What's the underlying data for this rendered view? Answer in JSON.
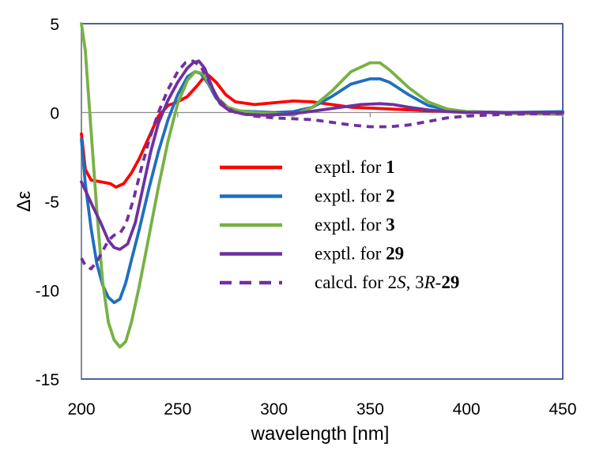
{
  "chart_data": {
    "type": "line",
    "title": "",
    "xlabel": "wavelength [nm]",
    "ylabel": "Δε",
    "xlim": [
      200,
      450
    ],
    "ylim": [
      -15,
      5
    ],
    "xticks": [
      200,
      250,
      300,
      350,
      400,
      450
    ],
    "yticks": [
      5,
      0,
      -5,
      -10,
      -15
    ],
    "grid": false,
    "legend_position": "center-right",
    "series": [
      {
        "name": "exptl. for 1",
        "legend_prefix": "exptl. for ",
        "legend_bold": "1",
        "color": "#ff0000",
        "dashed": false,
        "points": [
          [
            200,
            -1.2
          ],
          [
            202,
            -3.2
          ],
          [
            205,
            -3.8
          ],
          [
            210,
            -3.9
          ],
          [
            215,
            -4.0
          ],
          [
            218,
            -4.2
          ],
          [
            222,
            -4.0
          ],
          [
            226,
            -3.4
          ],
          [
            230,
            -2.6
          ],
          [
            235,
            -1.4
          ],
          [
            240,
            -0.2
          ],
          [
            245,
            0.4
          ],
          [
            250,
            0.6
          ],
          [
            255,
            0.9
          ],
          [
            260,
            1.5
          ],
          [
            263,
            1.9
          ],
          [
            266,
            2.1
          ],
          [
            270,
            1.7
          ],
          [
            275,
            1.0
          ],
          [
            280,
            0.6
          ],
          [
            290,
            0.45
          ],
          [
            300,
            0.55
          ],
          [
            310,
            0.65
          ],
          [
            320,
            0.6
          ],
          [
            330,
            0.45
          ],
          [
            340,
            0.3
          ],
          [
            350,
            0.25
          ],
          [
            360,
            0.2
          ],
          [
            370,
            0.15
          ],
          [
            380,
            0.1
          ],
          [
            400,
            0.05
          ],
          [
            420,
            0.0
          ],
          [
            450,
            0.0
          ]
        ]
      },
      {
        "name": "exptl. for 2",
        "legend_prefix": "exptl. for ",
        "legend_bold": "2",
        "color": "#1f6fbf",
        "dashed": false,
        "points": [
          [
            200,
            -1.5
          ],
          [
            202,
            -4.0
          ],
          [
            205,
            -6.5
          ],
          [
            208,
            -8.5
          ],
          [
            211,
            -9.7
          ],
          [
            214,
            -10.4
          ],
          [
            217,
            -10.7
          ],
          [
            220,
            -10.5
          ],
          [
            223,
            -9.6
          ],
          [
            226,
            -8.3
          ],
          [
            230,
            -6.6
          ],
          [
            235,
            -4.3
          ],
          [
            240,
            -2.2
          ],
          [
            245,
            -0.4
          ],
          [
            250,
            1.0
          ],
          [
            255,
            2.0
          ],
          [
            259,
            2.3
          ],
          [
            262,
            2.2
          ],
          [
            266,
            1.6
          ],
          [
            270,
            0.8
          ],
          [
            275,
            0.3
          ],
          [
            280,
            0.1
          ],
          [
            290,
            0.05
          ],
          [
            300,
            0.0
          ],
          [
            310,
            0.05
          ],
          [
            320,
            0.3
          ],
          [
            330,
            0.9
          ],
          [
            340,
            1.6
          ],
          [
            350,
            1.9
          ],
          [
            355,
            1.9
          ],
          [
            360,
            1.7
          ],
          [
            370,
            1.0
          ],
          [
            380,
            0.4
          ],
          [
            390,
            0.15
          ],
          [
            400,
            0.05
          ],
          [
            420,
            0.0
          ],
          [
            450,
            0.05
          ]
        ]
      },
      {
        "name": "exptl. for 3",
        "legend_prefix": "exptl. for ",
        "legend_bold": "3",
        "color": "#77b144",
        "dashed": false,
        "points": [
          [
            200,
            5.0
          ],
          [
            202,
            3.5
          ],
          [
            205,
            -1.0
          ],
          [
            208,
            -5.5
          ],
          [
            211,
            -9.5
          ],
          [
            214,
            -11.8
          ],
          [
            217,
            -12.8
          ],
          [
            220,
            -13.2
          ],
          [
            223,
            -12.9
          ],
          [
            226,
            -11.8
          ],
          [
            230,
            -9.8
          ],
          [
            235,
            -7.0
          ],
          [
            240,
            -4.2
          ],
          [
            245,
            -1.6
          ],
          [
            250,
            0.5
          ],
          [
            255,
            1.8
          ],
          [
            259,
            2.3
          ],
          [
            263,
            2.2
          ],
          [
            267,
            1.5
          ],
          [
            271,
            0.8
          ],
          [
            276,
            0.3
          ],
          [
            282,
            0.1
          ],
          [
            290,
            0.0
          ],
          [
            300,
            -0.05
          ],
          [
            310,
            -0.15
          ],
          [
            320,
            0.3
          ],
          [
            330,
            1.2
          ],
          [
            340,
            2.3
          ],
          [
            350,
            2.8
          ],
          [
            355,
            2.8
          ],
          [
            360,
            2.4
          ],
          [
            370,
            1.4
          ],
          [
            380,
            0.6
          ],
          [
            390,
            0.2
          ],
          [
            400,
            0.05
          ],
          [
            420,
            -0.05
          ],
          [
            450,
            -0.1
          ]
        ]
      },
      {
        "name": "exptl. for 29",
        "legend_prefix": "exptl. for ",
        "legend_bold": "29",
        "color": "#7030a0",
        "dashed": false,
        "points": [
          [
            200,
            -3.9
          ],
          [
            203,
            -4.6
          ],
          [
            206,
            -5.3
          ],
          [
            210,
            -6.2
          ],
          [
            214,
            -7.2
          ],
          [
            217,
            -7.6
          ],
          [
            220,
            -7.7
          ],
          [
            224,
            -7.4
          ],
          [
            228,
            -6.2
          ],
          [
            232,
            -4.2
          ],
          [
            236,
            -2.2
          ],
          [
            240,
            -0.6
          ],
          [
            245,
            0.7
          ],
          [
            250,
            1.7
          ],
          [
            255,
            2.5
          ],
          [
            258,
            2.8
          ],
          [
            261,
            2.9
          ],
          [
            264,
            2.5
          ],
          [
            268,
            1.4
          ],
          [
            272,
            0.5
          ],
          [
            277,
            0.1
          ],
          [
            285,
            -0.1
          ],
          [
            295,
            -0.15
          ],
          [
            305,
            -0.1
          ],
          [
            315,
            0.0
          ],
          [
            325,
            0.15
          ],
          [
            335,
            0.3
          ],
          [
            345,
            0.45
          ],
          [
            355,
            0.5
          ],
          [
            362,
            0.45
          ],
          [
            370,
            0.3
          ],
          [
            380,
            0.15
          ],
          [
            390,
            0.05
          ],
          [
            400,
            0.0
          ],
          [
            420,
            0.0
          ],
          [
            450,
            0.0
          ]
        ]
      },
      {
        "name": "calcd. for 2S, 3R-29",
        "legend_prefix": "calcd. for 2",
        "legend_italic1": "S",
        "legend_mid": ", 3",
        "legend_italic2": "R",
        "legend_dash": "-",
        "legend_bold": "29",
        "color": "#7030a0",
        "dashed": true,
        "points": [
          [
            200,
            -8.2
          ],
          [
            202,
            -8.6
          ],
          [
            205,
            -8.8
          ],
          [
            208,
            -8.4
          ],
          [
            211,
            -7.8
          ],
          [
            214,
            -7.2
          ],
          [
            217,
            -6.9
          ],
          [
            220,
            -6.8
          ],
          [
            223,
            -6.3
          ],
          [
            227,
            -4.9
          ],
          [
            231,
            -3.2
          ],
          [
            235,
            -1.6
          ],
          [
            240,
            0.0
          ],
          [
            245,
            1.3
          ],
          [
            250,
            2.3
          ],
          [
            254,
            2.8
          ],
          [
            258,
            2.9
          ],
          [
            262,
            2.6
          ],
          [
            266,
            1.8
          ],
          [
            270,
            0.9
          ],
          [
            275,
            0.3
          ],
          [
            280,
            0.0
          ],
          [
            290,
            -0.2
          ],
          [
            300,
            -0.3
          ],
          [
            310,
            -0.35
          ],
          [
            320,
            -0.4
          ],
          [
            330,
            -0.55
          ],
          [
            340,
            -0.7
          ],
          [
            350,
            -0.8
          ],
          [
            360,
            -0.8
          ],
          [
            370,
            -0.7
          ],
          [
            380,
            -0.5
          ],
          [
            390,
            -0.3
          ],
          [
            400,
            -0.2
          ],
          [
            420,
            -0.1
          ],
          [
            450,
            -0.05
          ]
        ]
      }
    ]
  }
}
